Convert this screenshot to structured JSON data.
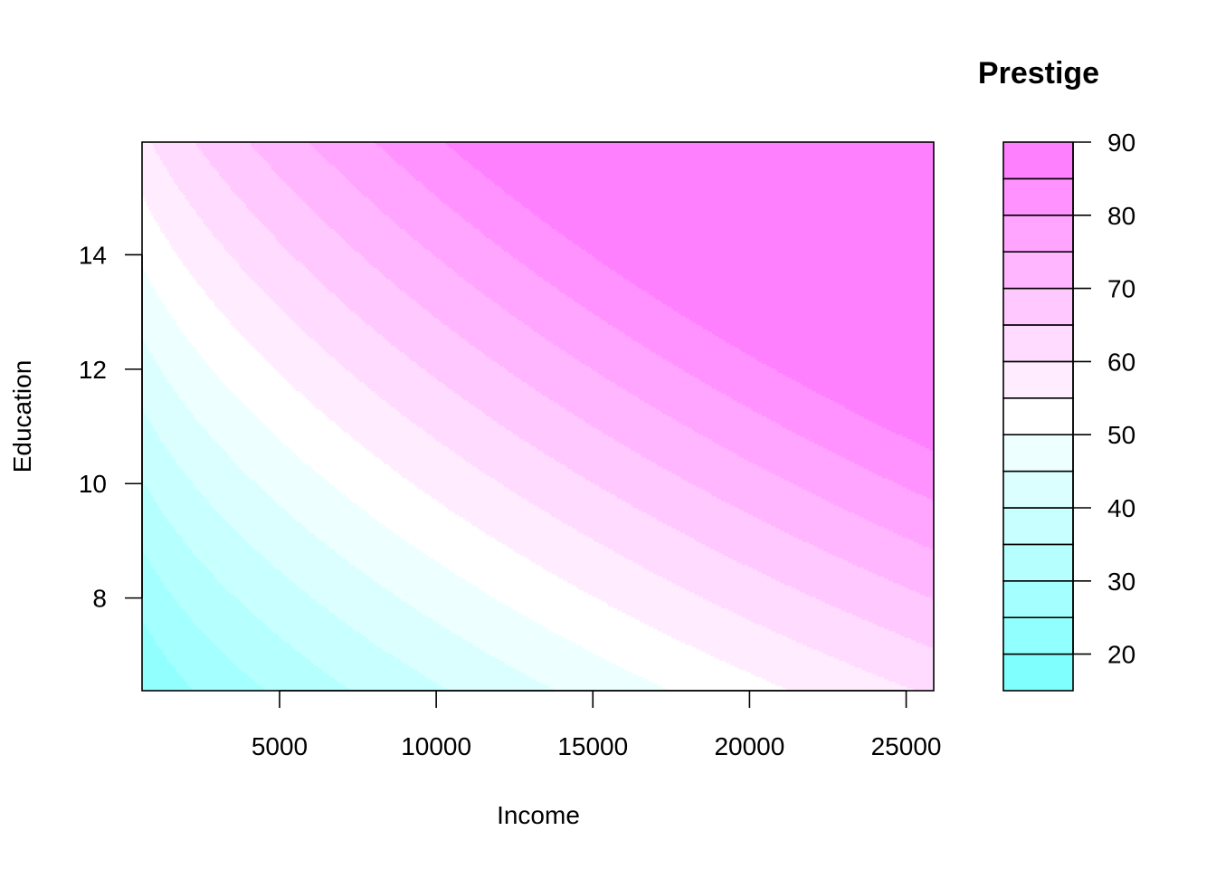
{
  "chart_data": {
    "type": "contour",
    "title": "",
    "xlabel": "Income",
    "ylabel": "Education",
    "xlim": [
      611,
      25879
    ],
    "ylim": [
      6.38,
      15.97
    ],
    "x_ticks": [
      5000,
      10000,
      15000,
      20000,
      25000
    ],
    "x_tick_labels": [
      "5000",
      "10000",
      "15000",
      "20000",
      "25000"
    ],
    "y_ticks": [
      8,
      10,
      12,
      14
    ],
    "y_tick_labels": [
      "8",
      "10",
      "12",
      "14"
    ],
    "legend": {
      "title": "Prestige",
      "placement": "right",
      "ticks": [
        20,
        30,
        40,
        50,
        60,
        70,
        80,
        90
      ],
      "tick_labels": [
        "20",
        "30",
        "40",
        "50",
        "60",
        "70",
        "80",
        "90"
      ]
    },
    "levels": [
      15,
      20,
      25,
      30,
      35,
      40,
      45,
      50,
      55,
      60,
      65,
      70,
      75,
      80,
      85,
      90
    ],
    "colors": [
      "#80FFFF",
      "#92FFFF",
      "#A4FFFF",
      "#B6FFFF",
      "#C8FFFF",
      "#DBFFFF",
      "#EDFFFF",
      "#FFFFFF",
      "#FFEDFF",
      "#FFDBFF",
      "#FFC8FF",
      "#FFB6FF",
      "#FFA4FF",
      "#FF92FF",
      "#FF80FF"
    ],
    "grid": false
  }
}
